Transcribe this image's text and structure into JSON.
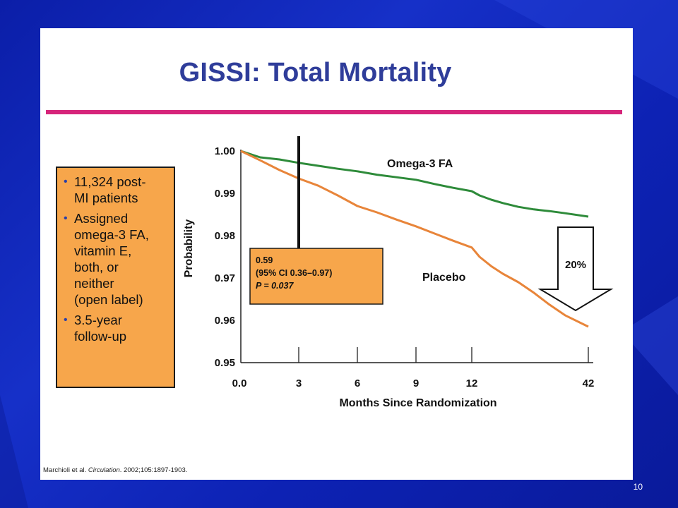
{
  "slide": {
    "title": "GISSI: Total Mortality",
    "page_number": "10",
    "citation_plain": "Marchioli et al. ",
    "citation_journal": "Circulation",
    "citation_rest": ". 2002;105:1897-1903.",
    "colors": {
      "background": "#1228bf",
      "title": "#2f3d9a",
      "rule": "#d6247a",
      "info_box": "#f7a64b",
      "bullet": "#2a3fa8"
    }
  },
  "info_box": {
    "items": [
      "11,324 post-MI patients",
      "Assigned omega-3 FA, vitamin E, both, or neither (open label)",
      "3.5-year follow-up"
    ],
    "lines": [
      [
        "11,324 post-",
        "MI patients"
      ],
      [
        "Assigned",
        "omega-3 FA,",
        "vitamin E,",
        "both, or",
        "neither",
        "(open label)"
      ],
      [
        "3.5-year",
        "follow-up"
      ]
    ]
  },
  "chart_data": {
    "type": "line",
    "title": "",
    "xlabel": "Months Since Randomization",
    "ylabel": "Probability",
    "ylim": [
      0.95,
      1.0
    ],
    "y_ticks": [
      "1.00",
      "0.99",
      "0.98",
      "0.97",
      "0.96",
      "0.95"
    ],
    "y_tick_values": [
      1.0,
      0.99,
      0.98,
      0.97,
      0.96,
      0.95
    ],
    "x_ticks": [
      "0.0",
      "3",
      "6",
      "9",
      "12",
      "42"
    ],
    "x_tick_positions_in_months_axis_note": "the axis is labeled 0.0, 3, 6, 9, 12, 42; the 12-to-42 gap is compressed on the printed axis",
    "series": [
      {
        "name": "Omega-3 FA",
        "color": "#2e8b3a",
        "points": [
          [
            0,
            1.0
          ],
          [
            1,
            0.9985
          ],
          [
            2,
            0.998
          ],
          [
            3,
            0.9972
          ],
          [
            4,
            0.9965
          ],
          [
            5,
            0.9958
          ],
          [
            6,
            0.9952
          ],
          [
            7,
            0.9944
          ],
          [
            8,
            0.9938
          ],
          [
            9,
            0.9932
          ],
          [
            10,
            0.9922
          ],
          [
            11,
            0.9913
          ],
          [
            12,
            0.9905
          ],
          [
            14,
            0.9895
          ],
          [
            17,
            0.9885
          ],
          [
            20,
            0.9877
          ],
          [
            24,
            0.9868
          ],
          [
            28,
            0.9862
          ],
          [
            32,
            0.9858
          ],
          [
            36,
            0.9853
          ],
          [
            42,
            0.9845
          ]
        ]
      },
      {
        "name": "Placebo",
        "color": "#e8853a",
        "points": [
          [
            0,
            1.0
          ],
          [
            1,
            0.9978
          ],
          [
            2,
            0.9955
          ],
          [
            3,
            0.9935
          ],
          [
            4,
            0.9918
          ],
          [
            5,
            0.9895
          ],
          [
            6,
            0.987
          ],
          [
            7,
            0.9855
          ],
          [
            8,
            0.9838
          ],
          [
            9,
            0.9822
          ],
          [
            10,
            0.9805
          ],
          [
            11,
            0.9788
          ],
          [
            12,
            0.9772
          ],
          [
            14,
            0.975
          ],
          [
            17,
            0.9728
          ],
          [
            20,
            0.971
          ],
          [
            24,
            0.969
          ],
          [
            28,
            0.9665
          ],
          [
            32,
            0.9637
          ],
          [
            36,
            0.9612
          ],
          [
            42,
            0.9585
          ]
        ]
      }
    ],
    "annotations": {
      "vertical_marker_month": 3,
      "ci_box": [
        "0.59",
        "(95% CI 0.36–0.97)",
        "P = 0.037"
      ],
      "arrow_label": "20%"
    }
  }
}
